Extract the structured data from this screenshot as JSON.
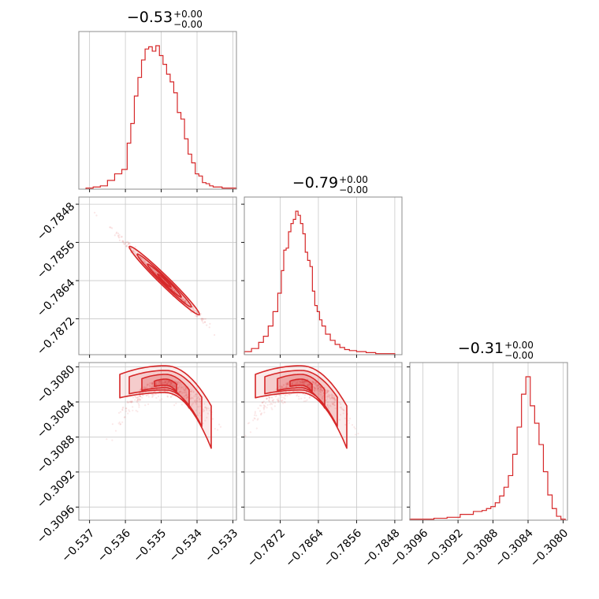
{
  "chart_data": {
    "type": "corner",
    "color": "#d62728",
    "parameters": [
      {
        "title": "−0.53",
        "upper": "+0.00",
        "lower": "−0.00",
        "range": [
          -0.5373,
          -0.5329
        ],
        "ticks": [
          -0.537,
          -0.536,
          -0.535,
          -0.534,
          -0.533
        ],
        "tick_labels": [
          "−0.537",
          "−0.536",
          "−0.535",
          "−0.534",
          "−0.533"
        ],
        "hist_centers": [
          -0.537,
          -0.5368,
          -0.5366,
          -0.5364,
          -0.5362,
          -0.536,
          -0.5359,
          -0.5358,
          -0.5357,
          -0.5356,
          -0.5355,
          -0.5354,
          -0.5353,
          -0.5352,
          -0.5351,
          -0.535,
          -0.5349,
          -0.5348,
          -0.5347,
          -0.5346,
          -0.5345,
          -0.5344,
          -0.5343,
          -0.5342,
          -0.5341,
          -0.534,
          -0.5339,
          -0.5338,
          -0.5337,
          -0.5336,
          -0.5335,
          -0.5334,
          -0.5332,
          -0.533
        ],
        "hist_counts": [
          1,
          2,
          3,
          8,
          14,
          18,
          42,
          60,
          85,
          102,
          118,
          128,
          130,
          126,
          131,
          122,
          114,
          105,
          98,
          88,
          70,
          64,
          46,
          32,
          24,
          14,
          12,
          6,
          5,
          3,
          2,
          2,
          1,
          1
        ]
      },
      {
        "title": "−0.79",
        "upper": "+0.00",
        "lower": "−0.00",
        "range": [
          -0.78795,
          -0.78465
        ],
        "ticks": [
          -0.7872,
          -0.7864,
          -0.7856,
          -0.7848
        ],
        "tick_labels": [
          "−0.7872",
          "−0.7864",
          "−0.7856",
          "−0.7848"
        ],
        "hist_centers": [
          -0.7879,
          -0.7877,
          -0.7876,
          -0.7875,
          -0.7874,
          -0.7873,
          -0.7872,
          -0.78715,
          -0.7871,
          -0.78705,
          -0.787,
          -0.78695,
          -0.7869,
          -0.78685,
          -0.7868,
          -0.78675,
          -0.7867,
          -0.78665,
          -0.7866,
          -0.78655,
          -0.7865,
          -0.78645,
          -0.7864,
          -0.78635,
          -0.7863,
          -0.7862,
          -0.7861,
          -0.786,
          -0.7859,
          -0.7858,
          -0.7857,
          -0.7855,
          -0.7853,
          -0.7851,
          -0.7849
        ],
        "hist_counts": [
          3,
          6,
          12,
          18,
          28,
          42,
          60,
          82,
          102,
          104,
          120,
          128,
          132,
          140,
          136,
          128,
          118,
          100,
          92,
          86,
          62,
          48,
          42,
          34,
          28,
          20,
          14,
          10,
          7,
          5,
          4,
          3,
          2,
          1,
          1
        ]
      },
      {
        "title": "−0.31",
        "upper": "+0.00",
        "lower": "−0.00",
        "range": [
          -0.30975,
          -0.30795
        ],
        "ticks": [
          -0.3096,
          -0.3092,
          -0.3088,
          -0.3084,
          -0.308
        ],
        "tick_labels": [
          "−0.3096",
          "−0.3092",
          "−0.3088",
          "−0.3084",
          "−0.3080"
        ],
        "hist_centers": [
          -0.3097,
          -0.30955,
          -0.3094,
          -0.30925,
          -0.3091,
          -0.30895,
          -0.3089,
          -0.30885,
          -0.3088,
          -0.30875,
          -0.3087,
          -0.30865,
          -0.3086,
          -0.30855,
          -0.3085,
          -0.30845,
          -0.3084,
          -0.30835,
          -0.3083,
          -0.30825,
          -0.3082,
          -0.30815,
          -0.3081,
          -0.30805,
          -0.308
        ],
        "hist_counts": [
          1,
          1,
          2,
          3,
          6,
          9,
          10,
          12,
          14,
          18,
          25,
          34,
          46,
          68,
          96,
          130,
          148,
          118,
          100,
          78,
          50,
          26,
          12,
          4,
          1
        ]
      }
    ],
    "pair_ranges": {
      "row1_y": [
        -0.78795,
        -0.78465
      ],
      "row2_y": [
        -0.30975,
        -0.30795
      ]
    },
    "pair_12": {
      "comment_free": true,
      "line": [
        [
          -0.5372,
          -0.7847
        ],
        [
          -0.536,
          -0.7856
        ],
        [
          -0.535,
          -0.7864
        ],
        [
          -0.534,
          -0.7871
        ],
        [
          -0.5331,
          -0.7877
        ]
      ]
    },
    "grid": true
  }
}
